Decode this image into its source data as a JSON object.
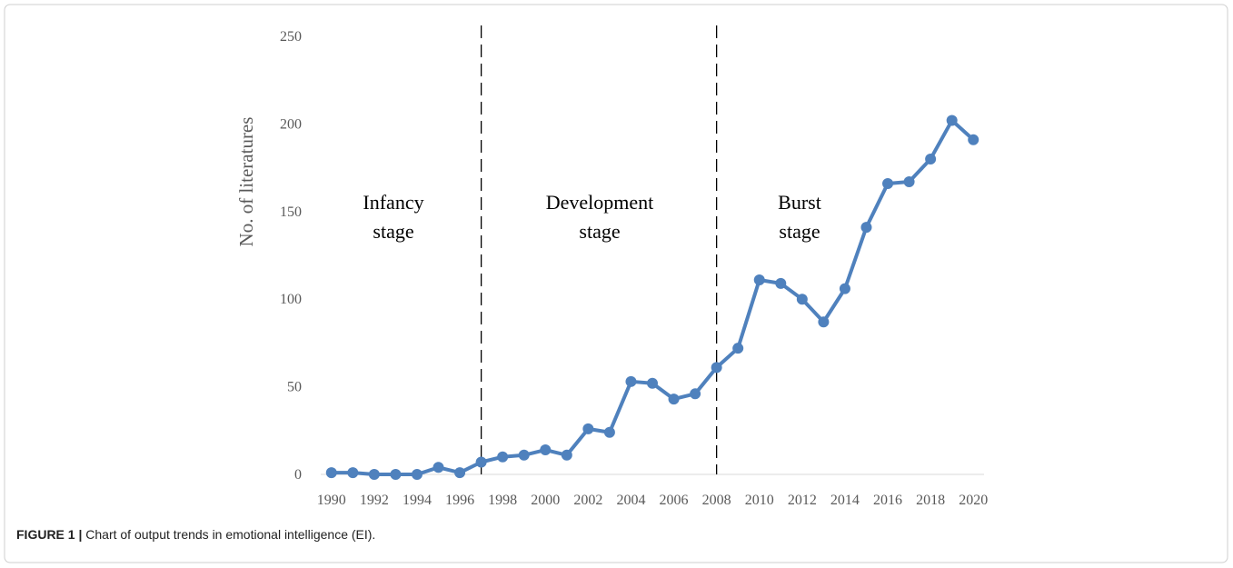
{
  "chart_data": {
    "type": "line",
    "y_label": "No. of literatures",
    "x": [
      1990,
      1991,
      1992,
      1993,
      1994,
      1995,
      1996,
      1997,
      1998,
      1999,
      2000,
      2001,
      2002,
      2003,
      2004,
      2005,
      2006,
      2007,
      2008,
      2009,
      2010,
      2011,
      2012,
      2013,
      2014,
      2015,
      2016,
      2017,
      2018,
      2019,
      2020
    ],
    "series": [
      {
        "color": "#4f81bd",
        "values": [
          1,
          1,
          0,
          0,
          0,
          4,
          1,
          7,
          10,
          11,
          14,
          11,
          26,
          24,
          53,
          52,
          43,
          46,
          61,
          72,
          111,
          109,
          100,
          87,
          106,
          141,
          166,
          167,
          180,
          202,
          191
        ]
      }
    ],
    "xlim": [
      1989.5,
      2020.5
    ],
    "xticks": [
      1990,
      1992,
      1994,
      1996,
      1998,
      2000,
      2002,
      2004,
      2006,
      2008,
      2010,
      2012,
      2014,
      2016,
      2018,
      2020
    ],
    "ylim": [
      0,
      250
    ],
    "yticks": [
      0,
      50,
      100,
      150,
      200,
      250
    ],
    "grid": false,
    "stage_dividers": [
      1997,
      2008
    ],
    "stages": [
      [
        "Infancy",
        "stage"
      ],
      [
        "Development",
        "stage"
      ],
      [
        "Burst",
        "stage"
      ]
    ],
    "caption_label": "FIGURE 1 |",
    "caption": "Chart of output trends in emotional intelligence (EI)."
  }
}
